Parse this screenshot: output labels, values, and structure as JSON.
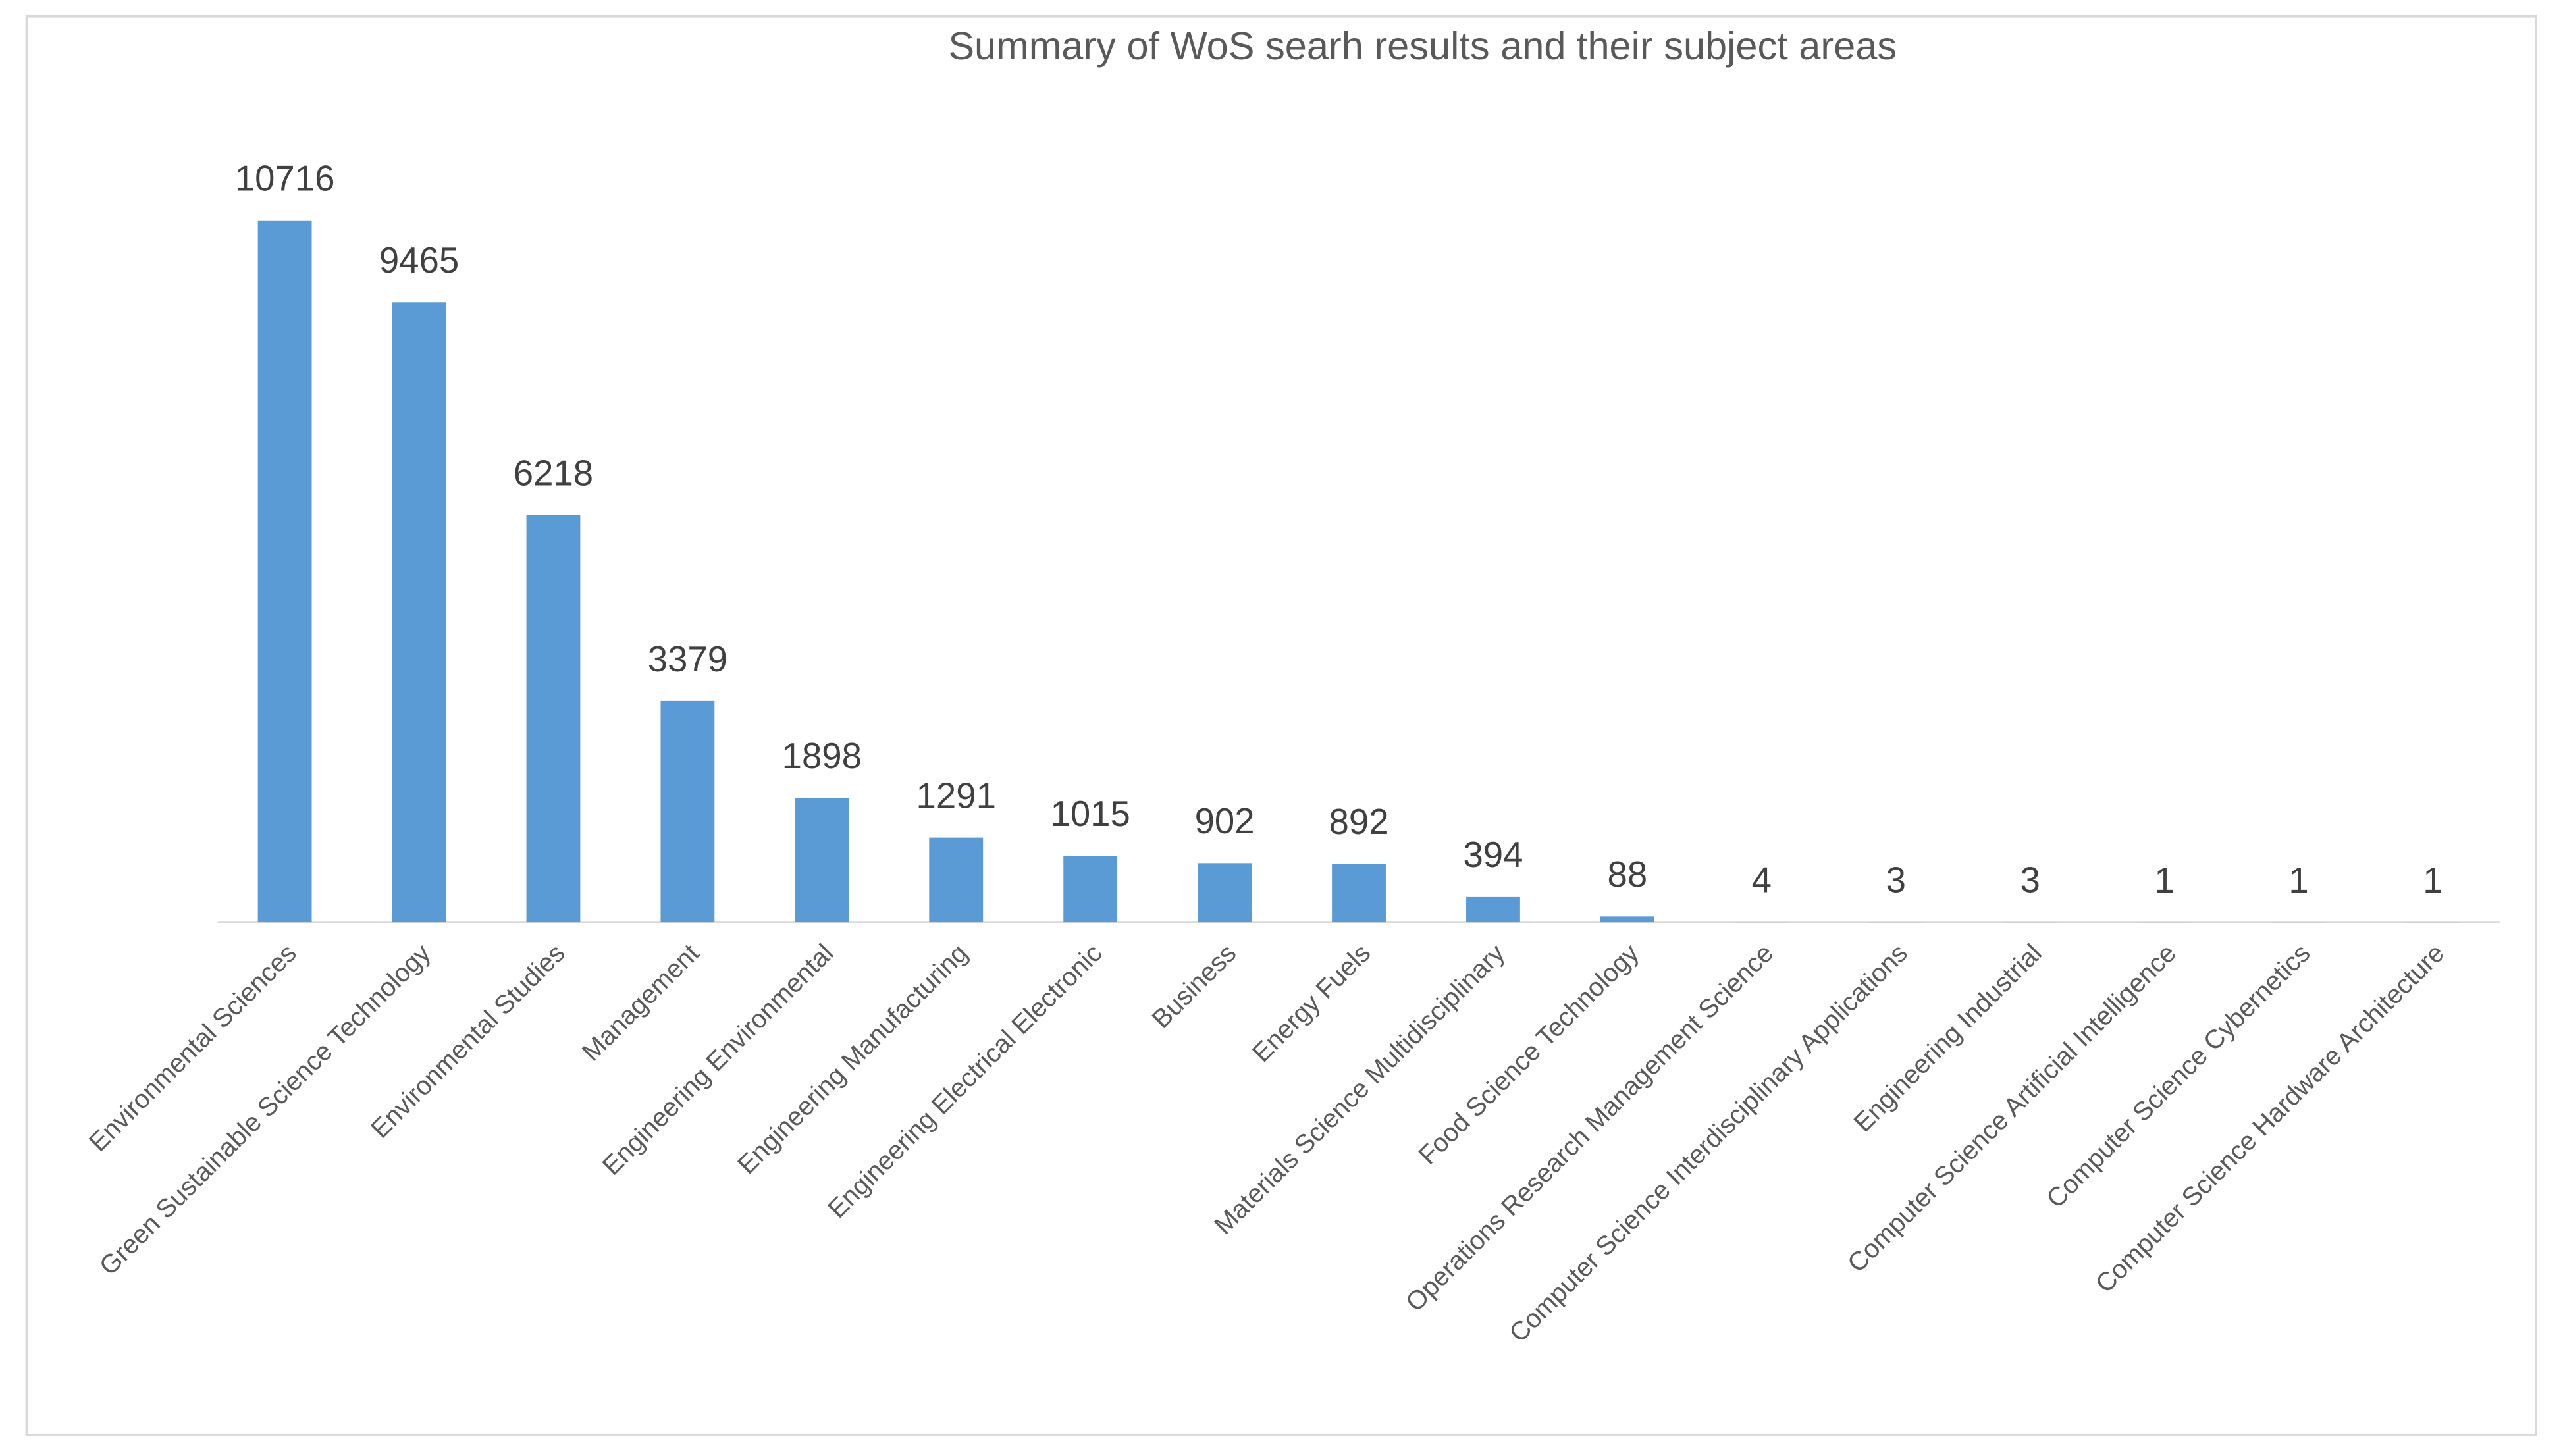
{
  "chart_data": {
    "type": "bar",
    "title": "Summary of WoS searh results and their subject areas",
    "categories": [
      "Environmental Sciences",
      "Green Sustainable Science Technology",
      "Environmental Studies",
      "Management",
      "Engineering Environmental",
      "Engineering Manufacturing",
      "Engineering Electrical Electronic",
      "Business",
      "Energy Fuels",
      "Materials Science Multidisciplinary",
      "Food Science Technology",
      "Operations Research Management Science",
      "Computer Science Interdisciplinary Applications",
      "Engineering Industrial",
      "Computer Science Artificial Intelligence",
      "Computer Science Cybernetics",
      "Computer Science Hardware Architecture"
    ],
    "values": [
      10716,
      9465,
      6218,
      3379,
      1898,
      1291,
      1015,
      902,
      892,
      394,
      88,
      4,
      3,
      3,
      1,
      1,
      1
    ],
    "color": "#5b9bd5"
  }
}
